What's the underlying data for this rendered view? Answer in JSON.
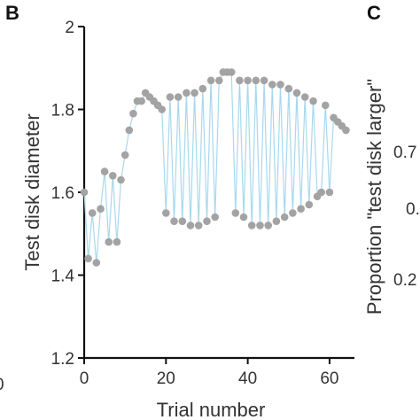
{
  "panels": {
    "b_letter": "B",
    "c_letter": "C"
  },
  "left_edge_tick": "0",
  "right_panel": {
    "ylabel": "Proportion \"test disk larger\"",
    "tick_labels": [
      "0.7",
      "0.",
      "0.2"
    ]
  },
  "chart_data": {
    "type": "scatter",
    "title": "",
    "xlabel": "Trial number",
    "ylabel": "Test disk diameter",
    "xlim": [
      0,
      65
    ],
    "ylim": [
      1.2,
      2.0
    ],
    "xticks": [
      0,
      20,
      40,
      60
    ],
    "yticks": [
      1.2,
      1.4,
      1.6,
      1.8,
      2.0
    ],
    "xtick_labels": [
      "0",
      "20",
      "40",
      "60"
    ],
    "ytick_labels": [
      "1.2",
      "1.4",
      "1.6",
      "1.8",
      "2"
    ],
    "connected": true,
    "colors": {
      "points": "#a3a3a3",
      "line": "#a8d8ee"
    },
    "x": [
      0,
      1,
      2,
      3,
      4,
      5,
      6,
      7,
      8,
      9,
      10,
      11,
      12,
      13,
      14,
      15,
      16,
      17,
      18,
      19,
      20,
      21,
      22,
      23,
      24,
      25,
      26,
      27,
      28,
      29,
      30,
      31,
      32,
      33,
      34,
      35,
      36,
      37,
      38,
      39,
      40,
      41,
      42,
      43,
      44,
      45,
      46,
      47,
      48,
      49,
      50,
      51,
      52,
      53,
      54,
      55,
      56,
      57,
      58,
      59,
      60,
      61,
      62,
      63,
      64
    ],
    "y": [
      1.6,
      1.44,
      1.55,
      1.43,
      1.56,
      1.65,
      1.48,
      1.64,
      1.48,
      1.63,
      1.69,
      1.75,
      1.79,
      1.82,
      1.82,
      1.84,
      1.83,
      1.82,
      1.81,
      1.8,
      1.55,
      1.83,
      1.53,
      1.83,
      1.53,
      1.84,
      1.52,
      1.84,
      1.52,
      1.85,
      1.53,
      1.87,
      1.54,
      1.87,
      1.89,
      1.89,
      1.89,
      1.55,
      1.87,
      1.54,
      1.87,
      1.52,
      1.87,
      1.52,
      1.87,
      1.52,
      1.86,
      1.53,
      1.86,
      1.54,
      1.85,
      1.55,
      1.84,
      1.56,
      1.83,
      1.57,
      1.82,
      1.59,
      1.6,
      1.81,
      1.6,
      1.78,
      1.77,
      1.76,
      1.75
    ]
  }
}
